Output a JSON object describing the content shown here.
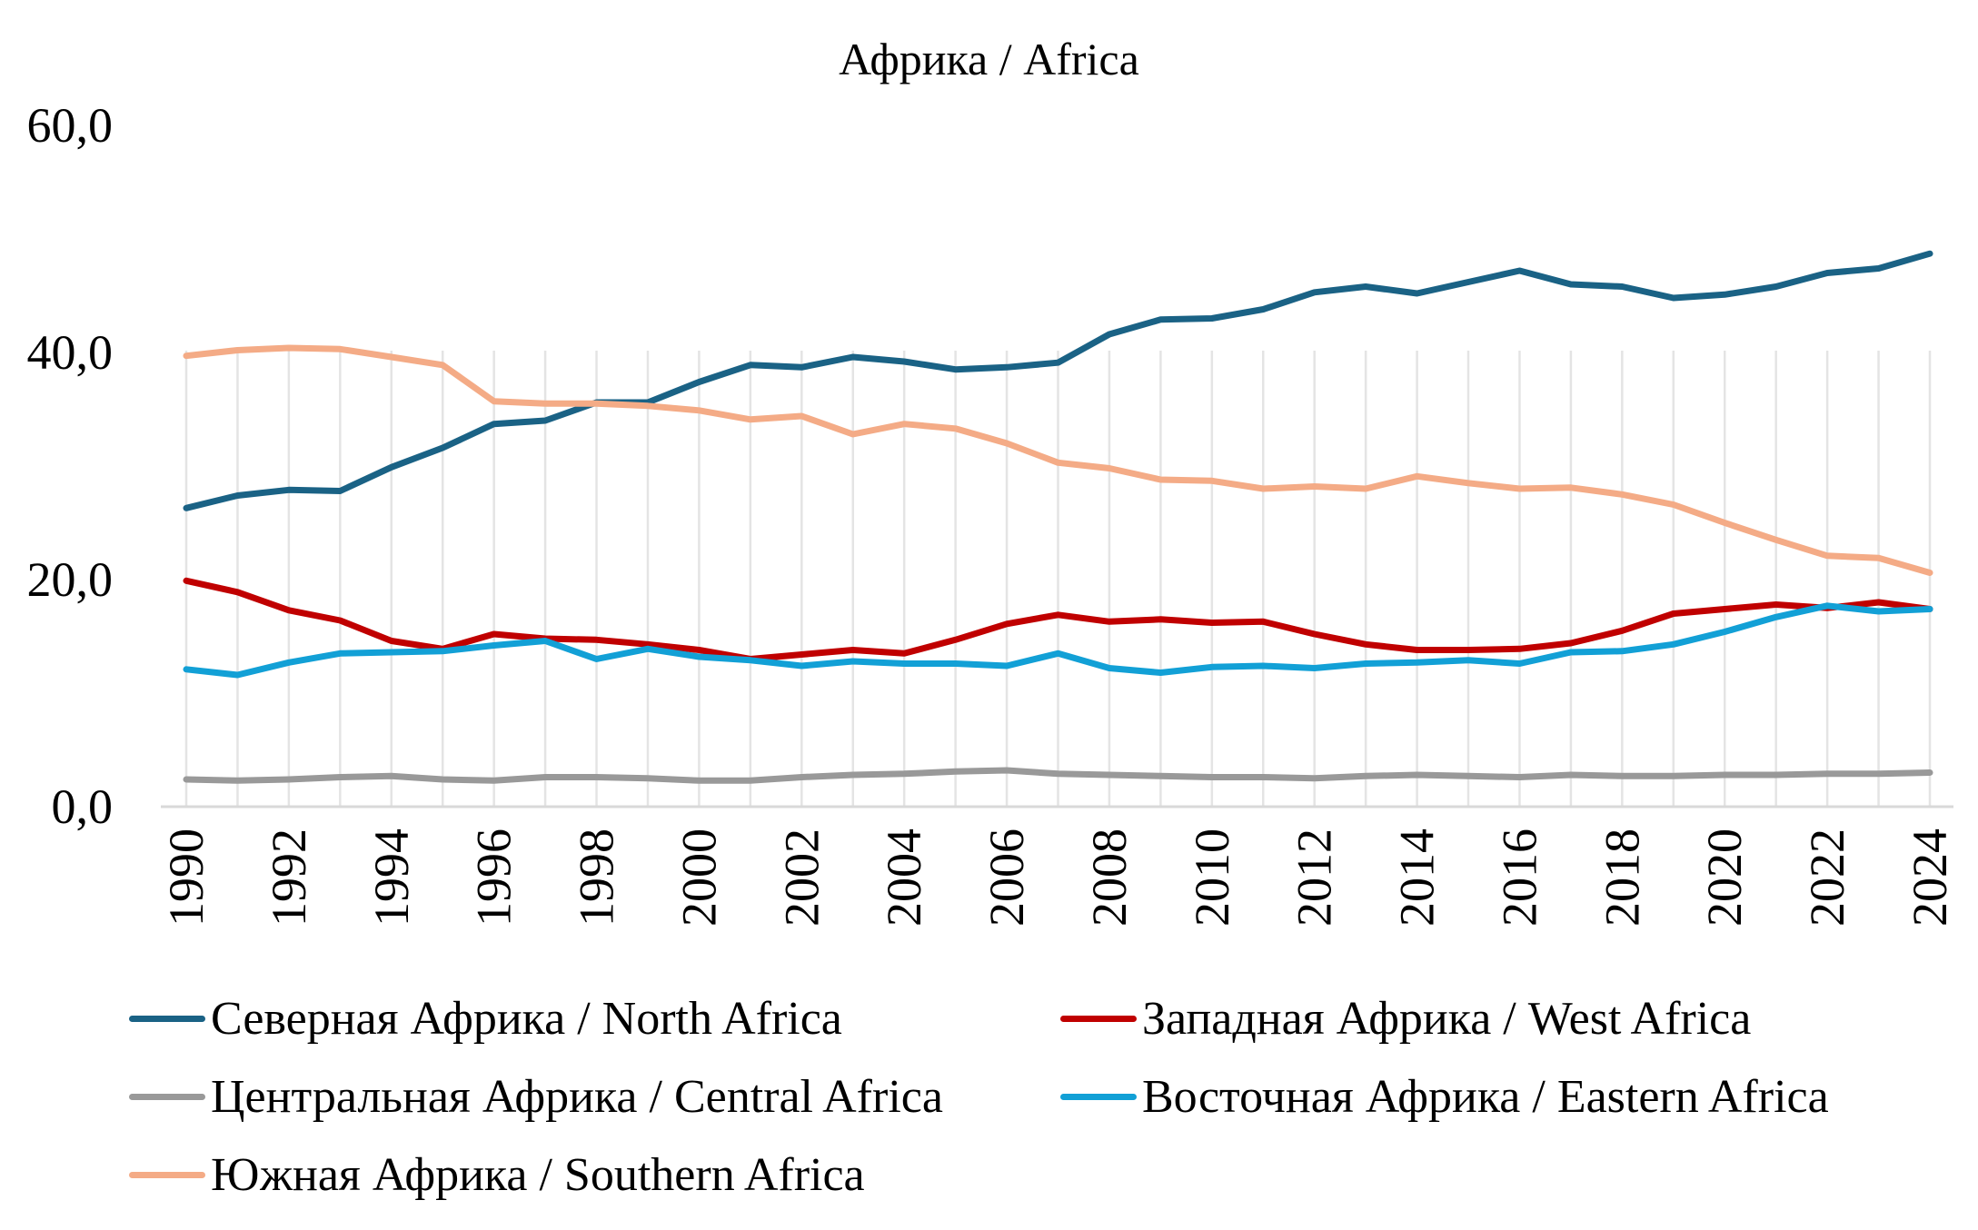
{
  "chart_data": {
    "type": "line",
    "title": "Африка / Africa",
    "xlabel": "",
    "ylabel": "",
    "ylim": [
      0,
      60
    ],
    "y_ticks": [
      "0,0",
      "20,0",
      "40,0",
      "60,0"
    ],
    "y_tick_values": [
      0,
      20,
      40,
      60
    ],
    "x": [
      1990,
      1991,
      1992,
      1993,
      1994,
      1995,
      1996,
      1997,
      1998,
      1999,
      2000,
      2001,
      2002,
      2003,
      2004,
      2005,
      2006,
      2007,
      2008,
      2009,
      2010,
      2011,
      2012,
      2013,
      2014,
      2015,
      2016,
      2017,
      2018,
      2019,
      2020,
      2021,
      2022,
      2023,
      2024
    ],
    "x_tick_labels": [
      "1990",
      "1992",
      "1994",
      "1996",
      "1998",
      "2000",
      "2002",
      "2004",
      "2006",
      "2008",
      "2010",
      "2012",
      "2014",
      "2016",
      "2018",
      "2020",
      "2022",
      "2024"
    ],
    "grid": "vertical",
    "legend_position": "bottom",
    "series": [
      {
        "name": "Северная Африка / North Africa",
        "color": "#1a6285",
        "values": [
          26.3,
          27.4,
          27.9,
          27.8,
          29.9,
          31.6,
          33.7,
          34.0,
          35.6,
          35.6,
          37.4,
          38.9,
          38.7,
          39.6,
          39.2,
          38.5,
          38.7,
          39.1,
          41.6,
          42.9,
          43.0,
          43.8,
          45.3,
          45.8,
          45.2,
          46.2,
          47.2,
          46.0,
          45.8,
          44.8,
          45.1,
          45.8,
          47.0,
          47.4,
          48.7
        ]
      },
      {
        "name": "Западная Африка / West Africa",
        "color": "#c00000",
        "values": [
          19.9,
          18.9,
          17.3,
          16.4,
          14.6,
          13.9,
          15.2,
          14.8,
          14.7,
          14.3,
          13.8,
          13.0,
          13.4,
          13.8,
          13.5,
          14.7,
          16.1,
          16.9,
          16.3,
          16.5,
          16.2,
          16.3,
          15.2,
          14.3,
          13.8,
          13.8,
          13.9,
          14.4,
          15.5,
          17.0,
          17.4,
          17.8,
          17.5,
          18.0,
          17.4
        ]
      },
      {
        "name": "Центральная Африка / Central Africa",
        "color": "#999999",
        "values": [
          2.4,
          2.3,
          2.4,
          2.6,
          2.7,
          2.4,
          2.3,
          2.6,
          2.6,
          2.5,
          2.3,
          2.3,
          2.6,
          2.8,
          2.9,
          3.1,
          3.2,
          2.9,
          2.8,
          2.7,
          2.6,
          2.6,
          2.5,
          2.7,
          2.8,
          2.7,
          2.6,
          2.8,
          2.7,
          2.7,
          2.8,
          2.8,
          2.9,
          2.9,
          3.0
        ]
      },
      {
        "name": "Восточная Африка / Eastern Africa",
        "color": "#12a0d6",
        "values": [
          12.1,
          11.6,
          12.7,
          13.5,
          13.6,
          13.7,
          14.2,
          14.6,
          13.0,
          13.9,
          13.2,
          12.9,
          12.4,
          12.8,
          12.6,
          12.6,
          12.4,
          13.5,
          12.2,
          11.8,
          12.3,
          12.4,
          12.2,
          12.6,
          12.7,
          12.9,
          12.6,
          13.6,
          13.7,
          14.3,
          15.4,
          16.7,
          17.7,
          17.2,
          17.4
        ]
      },
      {
        "name": "Южная Африка / Southern Africa",
        "color": "#f4ab86",
        "values": [
          39.7,
          40.2,
          40.4,
          40.3,
          39.6,
          38.9,
          35.7,
          35.5,
          35.5,
          35.3,
          34.9,
          34.1,
          34.4,
          32.8,
          33.7,
          33.3,
          32.0,
          30.3,
          29.8,
          28.8,
          28.7,
          28.0,
          28.2,
          28.0,
          29.1,
          28.5,
          28.0,
          28.1,
          27.5,
          26.6,
          25.0,
          23.5,
          22.1,
          21.9,
          20.6
        ]
      }
    ]
  }
}
